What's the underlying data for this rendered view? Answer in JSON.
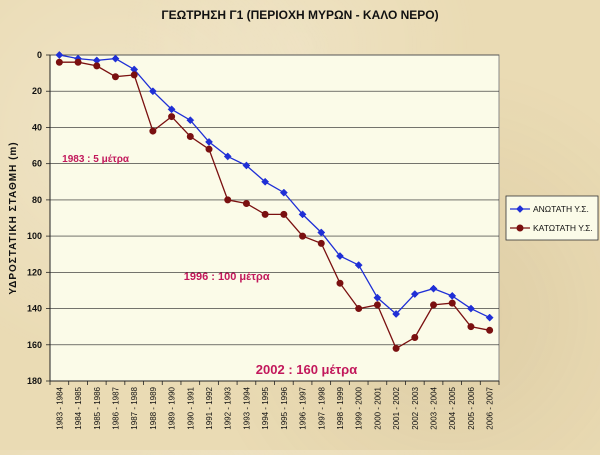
{
  "chart_data": {
    "type": "line",
    "title": "ΓΕΩΤΡΗΣΗ Γ1 (ΠΕΡΙΟΧΗ ΜΥΡΩΝ - ΚΑΛΟ ΝΕΡΟ)",
    "xlabel": "",
    "ylabel": "ΥΔΡΟΣΤΑΤΙΚΗ ΣΤΑΘΜΗ (m)",
    "ylim": [
      0,
      180
    ],
    "y_inverted": true,
    "y_ticks": [
      0,
      20,
      40,
      60,
      80,
      100,
      120,
      140,
      160,
      180
    ],
    "grid": "horizontal",
    "legend_position": "right",
    "categories": [
      "1983 - 1984",
      "1984 - 1985",
      "1985 - 1986",
      "1986 - 1987",
      "1987 - 1988",
      "1988 - 1989",
      "1989 - 1990",
      "1990 - 1991",
      "1991 - 1992",
      "1992 - 1993",
      "1993 - 1994",
      "1994 - 1995",
      "1995 - 1996",
      "1996 - 1997",
      "1997 - 1998",
      "1998 - 1999",
      "1999 - 2000",
      "2000 - 2001",
      "2001 - 2002",
      "2002 - 2003",
      "2003 - 2004",
      "2004 - 2005",
      "2005 - 2006",
      "2006 - 2007"
    ],
    "series": [
      {
        "name": "ΑΝΩΤΑΤΗ Υ.Σ.",
        "color": "#1f2fd6",
        "marker": "diamond",
        "values": [
          0,
          2,
          3,
          2,
          8,
          20,
          30,
          36,
          48,
          56,
          61,
          70,
          76,
          88,
          98,
          111,
          116,
          134,
          143,
          132,
          129,
          133,
          140,
          145
        ]
      },
      {
        "name": "ΚΑΤΩΤΑΤΗ Υ.Σ.",
        "color": "#7a1010",
        "marker": "circle",
        "values": [
          4,
          4,
          6,
          12,
          11,
          42,
          34,
          45,
          52,
          80,
          82,
          88,
          88,
          100,
          104,
          126,
          140,
          138,
          162,
          156,
          138,
          137,
          150,
          152
        ]
      }
    ],
    "annotations": [
      {
        "text": "1983 :  5 μέτρα",
        "size": 10
      },
      {
        "text": "1996  :  100 μέτρα",
        "size": 11
      },
      {
        "text": "2002  :  160 μέτρα",
        "size": 13
      }
    ]
  }
}
